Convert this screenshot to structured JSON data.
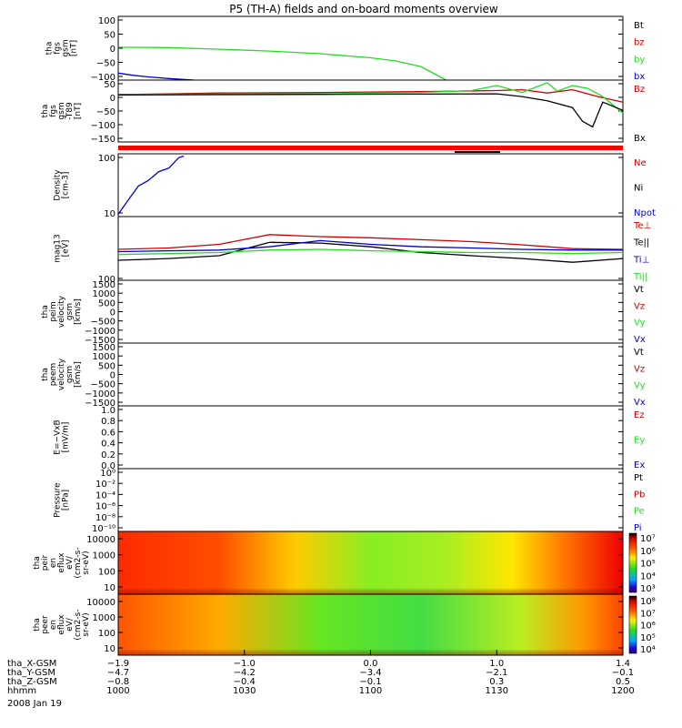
{
  "title": "P5 (TH-A) fields and on-board moments overview",
  "colors": {
    "black": "#000000",
    "red": "#cc0000",
    "green": "#22dd22",
    "blue": "#0000cc",
    "brightRed": "#ff0000"
  },
  "chart_data": [
    {
      "type": "line",
      "ylabel": [
        "tha",
        "fgs",
        "gsm",
        "[nT]"
      ],
      "yticks": [
        "100",
        "50",
        "0",
        "−50",
        "−100"
      ],
      "ylim": [
        -100,
        100
      ],
      "legend": [
        "Bt",
        "bz",
        "by",
        "bx"
      ],
      "series": [
        {
          "name": "by",
          "color": "green",
          "x": [
            0,
            0.1,
            0.2,
            0.3,
            0.4,
            0.5,
            0.55,
            0.6,
            0.65
          ],
          "y": [
            3,
            2,
            -3,
            -9,
            -17,
            -30,
            -40,
            -58,
            -100
          ]
        },
        {
          "name": "bx",
          "color": "blue",
          "x": [
            0,
            0.03,
            0.06,
            0.1,
            0.15
          ],
          "y": [
            -78,
            -85,
            -90,
            -95,
            -100
          ]
        }
      ]
    },
    {
      "type": "line",
      "ylabel": [
        "tha",
        "fgs",
        "gsm",
        "-T89",
        "[nT]"
      ],
      "yticks": [
        "50",
        "0",
        "−50",
        "−100",
        "−150"
      ],
      "ylim": [
        -175,
        50
      ],
      "legend": [
        "Bz",
        "Bx"
      ],
      "series": [
        {
          "name": "Bz",
          "color": "red",
          "x": [
            0,
            0.2,
            0.4,
            0.6,
            0.75,
            0.8,
            0.85,
            0.9,
            0.95,
            1.0
          ],
          "y": [
            -3,
            3,
            5,
            8,
            12,
            15,
            3,
            15,
            -10,
            -30
          ]
        },
        {
          "name": "By",
          "color": "green",
          "x": [
            0,
            0.2,
            0.4,
            0.6,
            0.7,
            0.75,
            0.8,
            0.85,
            0.87,
            0.9,
            0.93,
            0.96,
            1.0
          ],
          "y": [
            -2,
            -1,
            0,
            5,
            12,
            30,
            5,
            40,
            10,
            30,
            20,
            -10,
            -70
          ]
        },
        {
          "name": "Bx",
          "color": "black",
          "x": [
            0,
            0.2,
            0.4,
            0.6,
            0.75,
            0.8,
            0.85,
            0.9,
            0.92,
            0.94,
            0.96,
            1.0
          ],
          "y": [
            -4,
            -3,
            -2,
            -1,
            0,
            -10,
            -25,
            -50,
            -100,
            -120,
            -30,
            -60
          ]
        }
      ]
    },
    {
      "type": "line",
      "ylabel": [
        "Density",
        "[cm-3]"
      ],
      "yticks": [
        "100",
        "10"
      ],
      "yscale": "log",
      "ylim": [
        7,
        250
      ],
      "legend": [
        "Ne",
        "Ni",
        "Npot"
      ],
      "series": [
        {
          "name": "Npot",
          "color": "blue",
          "x": [
            0,
            0.02,
            0.04,
            0.06,
            0.08,
            0.1,
            0.12,
            0.13
          ],
          "y": [
            8,
            18,
            40,
            55,
            90,
            110,
            200,
            220
          ]
        }
      ]
    },
    {
      "type": "line",
      "ylabel": [
        "mag13",
        "[eV]"
      ],
      "yticks": [
        "100"
      ],
      "yscale": "log",
      "ylim": [
        100,
        30000
      ],
      "legend": [
        "Te⊥",
        "Te||",
        "Ti⊥",
        "Ti||"
      ],
      "series": [
        {
          "name": "Te⊥",
          "color": "red",
          "x": [
            0,
            0.1,
            0.2,
            0.3,
            0.4,
            0.5,
            0.6,
            0.7,
            0.8,
            0.9,
            1.0
          ],
          "y": [
            1600,
            1800,
            2500,
            6000,
            5000,
            4500,
            3800,
            3200,
            2400,
            1700,
            1600
          ]
        },
        {
          "name": "Te||",
          "color": "black",
          "x": [
            0,
            0.1,
            0.2,
            0.3,
            0.4,
            0.5,
            0.6,
            0.7,
            0.8,
            0.9,
            1.0
          ],
          "y": [
            600,
            700,
            900,
            3000,
            2800,
            2000,
            1200,
            900,
            700,
            500,
            700
          ]
        },
        {
          "name": "Ti⊥",
          "color": "blue",
          "x": [
            0,
            0.1,
            0.2,
            0.3,
            0.4,
            0.5,
            0.6,
            0.7,
            0.8,
            0.9,
            1.0
          ],
          "y": [
            1300,
            1400,
            1500,
            2000,
            3500,
            2500,
            2000,
            1800,
            1600,
            1500,
            1500
          ]
        },
        {
          "name": "Ti||",
          "color": "green",
          "x": [
            0,
            0.1,
            0.2,
            0.3,
            0.4,
            0.5,
            0.6,
            0.7,
            0.8,
            0.9,
            1.0
          ],
          "y": [
            1000,
            1100,
            1200,
            1500,
            1600,
            1400,
            1300,
            1200,
            1200,
            1100,
            1200
          ]
        }
      ]
    },
    {
      "type": "line",
      "ylabel": [
        "tha",
        "peim",
        "velocity",
        "gsm",
        "[km/s]"
      ],
      "yticks": [
        "1500",
        "1000",
        "500",
        "0",
        "−500",
        "−1000",
        "−1500"
      ],
      "ylim": [
        -1500,
        1500
      ],
      "legend": [
        "Vt",
        "Vz",
        "Vy",
        "Vx"
      ],
      "series": []
    },
    {
      "type": "line",
      "ylabel": [
        "tha",
        "peem",
        "velocity",
        "gsm",
        "[km/s]"
      ],
      "yticks": [
        "1500",
        "1000",
        "500",
        "0",
        "−500",
        "−1000",
        "−1500"
      ],
      "ylim": [
        -1500,
        1500
      ],
      "legend": [
        "Vt",
        "Vz",
        "Vy",
        "Vx"
      ],
      "series": []
    },
    {
      "type": "line",
      "ylabel": [
        "E=−VxB",
        "[mV/m]"
      ],
      "yticks": [
        "1.0",
        "0.8",
        "0.6",
        "0.4",
        "0.2",
        "0.0"
      ],
      "ylim": [
        0,
        1
      ],
      "legend": [
        "Ez",
        "Ey",
        "Ex"
      ],
      "series": []
    },
    {
      "type": "line",
      "ylabel": [
        "Pressure",
        "[nPa]"
      ],
      "yticks": [
        "10⁰",
        "10⁻²",
        "10⁻⁴",
        "10⁻⁶",
        "10⁻⁸",
        "10⁻¹⁰"
      ],
      "yscale": "log",
      "legend": [
        "Pt",
        "Pb",
        "Pe",
        "Pi"
      ],
      "series": []
    },
    {
      "type": "heatmap",
      "ylabel": [
        "tha",
        "peir",
        "en",
        "eflux",
        "eV/",
        "(cm2-s-",
        "sr-eV)"
      ],
      "yticks": [
        "10000",
        "1000",
        "100",
        "10"
      ],
      "colorbar": [
        "10⁷",
        "10⁶",
        "10⁵",
        "10⁴",
        "10³"
      ]
    },
    {
      "type": "heatmap",
      "ylabel": [
        "tha",
        "peer",
        "en",
        "eflux",
        "eV/",
        "(cm2-s-",
        "sr-eV)"
      ],
      "yticks": [
        "10000",
        "1000",
        "100",
        "10"
      ],
      "colorbar": [
        "10⁸",
        "10⁷",
        "10⁶",
        "10⁵",
        "10⁴"
      ]
    }
  ],
  "xaxis": {
    "rows": [
      {
        "label": "tha_X-GSM",
        "values": [
          "−1.9",
          "−1.0",
          "0.0",
          "1.0",
          "1.4"
        ]
      },
      {
        "label": "tha_Y-GSM",
        "values": [
          "−4.7",
          "−4.2",
          "−3.4",
          "−2.1",
          "−0.1"
        ]
      },
      {
        "label": "tha_Z-GSM",
        "values": [
          "−0.8",
          "−0.4",
          "−0.1",
          "0.3",
          "0.5"
        ]
      },
      {
        "label": "hhmm",
        "values": [
          "1000",
          "1030",
          "1100",
          "1130",
          "1200"
        ]
      }
    ],
    "date": "2008 Jan 19"
  }
}
